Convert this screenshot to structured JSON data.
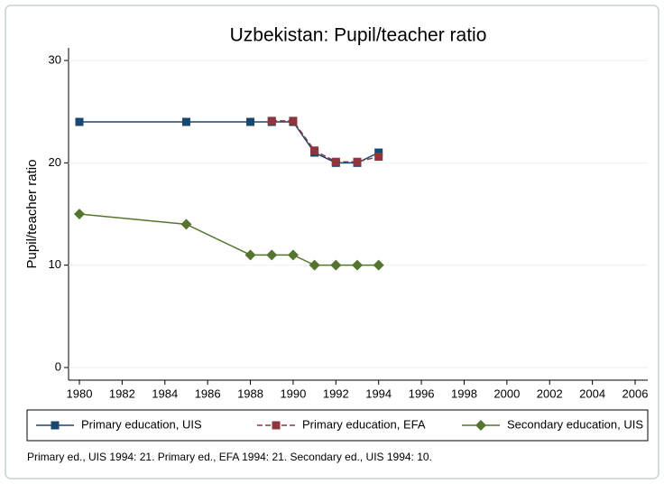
{
  "chart_data": {
    "type": "line",
    "title": "Uzbekistan: Pupil/teacher ratio",
    "y_label": "Pupil/teacher ratio",
    "x": [
      1980,
      1985,
      1988,
      1989,
      1990,
      1991,
      1992,
      1993,
      1994
    ],
    "series": [
      {
        "name": "Primary education, UIS",
        "color": "#1a476f",
        "marker": "square",
        "dashed": false,
        "values": [
          24,
          24,
          24,
          24,
          24,
          21,
          20,
          20,
          21
        ]
      },
      {
        "name": "Primary education, EFA",
        "color": "#90353b",
        "marker": "square",
        "dashed": true,
        "values": [
          null,
          null,
          null,
          24.1,
          24.1,
          21.2,
          20.1,
          20.1,
          20.6
        ]
      },
      {
        "name": "Secondary education, UIS",
        "color": "#55752f",
        "marker": "diamond",
        "dashed": false,
        "values": [
          15,
          14,
          11,
          11,
          11,
          10,
          10,
          10,
          10
        ]
      }
    ],
    "xlim": [
      1980,
      2006
    ],
    "xticks": [
      1980,
      1982,
      1984,
      1986,
      1988,
      1990,
      1992,
      1994,
      1996,
      1998,
      2000,
      2002,
      2004,
      2006
    ],
    "ylim": [
      0,
      30
    ],
    "yticks": [
      0,
      10,
      20,
      30
    ],
    "grid": true,
    "note": "Primary ed., UIS 1994: 21. Primary ed., EFA 1994: 21. Secondary ed., UIS 1994: 10."
  }
}
